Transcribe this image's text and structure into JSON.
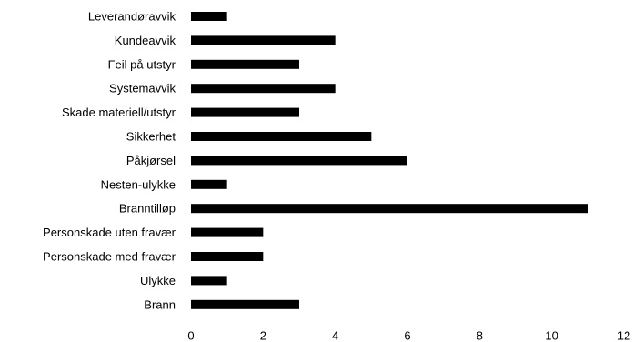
{
  "chart_data": {
    "type": "bar",
    "orientation": "horizontal",
    "categories": [
      "Leverandøravvik",
      "Kundeavvik",
      "Feil på utstyr",
      "Systemavvik",
      "Skade materiell/utstyr",
      "Sikkerhet",
      "Påkjørsel",
      "Nesten-ulykke",
      "Branntilløp",
      "Personskade uten fravær",
      "Personskade med fravær",
      "Ulykke",
      "Brann"
    ],
    "values": [
      1,
      4,
      3,
      4,
      3,
      5,
      6,
      1,
      11,
      2,
      2,
      1,
      3
    ],
    "xlim": [
      0,
      12
    ],
    "xticks": [
      0,
      2,
      4,
      6,
      8,
      10,
      12
    ],
    "xlabel": "",
    "ylabel": "",
    "title": "",
    "grid": false,
    "legend": "none",
    "colors": {
      "bar": "#000000",
      "text": "#000000",
      "background": "#ffffff"
    }
  }
}
